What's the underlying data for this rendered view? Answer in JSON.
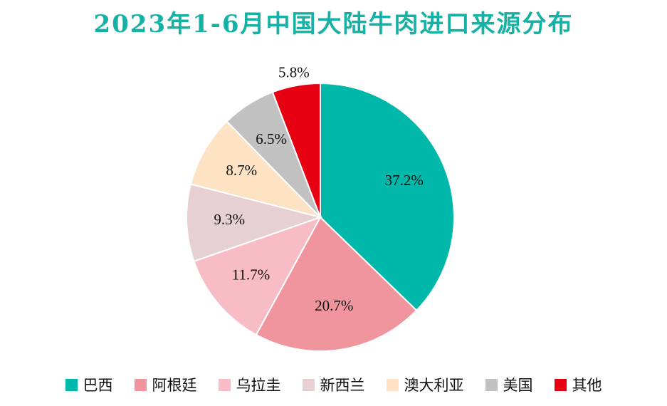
{
  "chart_data": {
    "type": "pie",
    "title": "2023年1-6月中国大陆牛肉进口来源分布",
    "series": [
      {
        "name": "巴西",
        "value": 37.2,
        "label": "37.2%",
        "color": "#00b8a9"
      },
      {
        "name": "阿根廷",
        "value": 20.7,
        "label": "20.7%",
        "color": "#f0959e"
      },
      {
        "name": "乌拉圭",
        "value": 11.7,
        "label": "11.7%",
        "color": "#f7bcc6"
      },
      {
        "name": "新西兰",
        "value": 9.3,
        "label": "9.3%",
        "color": "#e7d0d1"
      },
      {
        "name": "澳大利亚",
        "value": 8.7,
        "label": "8.7%",
        "color": "#fde3c3"
      },
      {
        "name": "美国",
        "value": 6.5,
        "label": "6.5%",
        "color": "#c1c1c1"
      },
      {
        "name": "其他",
        "value": 5.8,
        "label": "5.8%",
        "color": "#e60012"
      }
    ],
    "legend_position": "bottom"
  }
}
